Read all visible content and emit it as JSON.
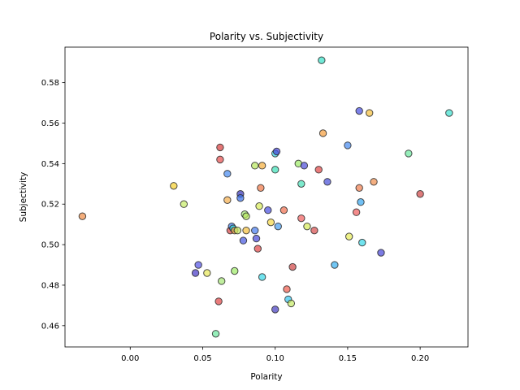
{
  "chart_data": {
    "type": "scatter",
    "title": "Polarity vs. Subjectivity",
    "xlabel": "Polarity",
    "ylabel": "Subjectivity",
    "xlim": [
      -0.045,
      0.233
    ],
    "ylim": [
      0.4495,
      0.5975
    ],
    "xticks": [
      0.0,
      0.05,
      0.1,
      0.15,
      0.2
    ],
    "xtick_labels": [
      "0.00",
      "0.05",
      "0.10",
      "0.15",
      "0.20"
    ],
    "yticks": [
      0.46,
      0.48,
      0.5,
      0.52,
      0.54,
      0.56,
      0.58
    ],
    "ytick_labels": [
      "0.46",
      "0.48",
      "0.50",
      "0.52",
      "0.54",
      "0.56",
      "0.58"
    ],
    "grid": false,
    "legend": "none",
    "points": [
      {
        "x": -0.033,
        "y": 0.514,
        "color": "#f08f4a"
      },
      {
        "x": 0.03,
        "y": 0.529,
        "color": "#f5d030"
      },
      {
        "x": 0.037,
        "y": 0.52,
        "color": "#c8ec6a"
      },
      {
        "x": 0.045,
        "y": 0.486,
        "color": "#4a3cc8"
      },
      {
        "x": 0.047,
        "y": 0.49,
        "color": "#5656e6"
      },
      {
        "x": 0.053,
        "y": 0.486,
        "color": "#e8e85a"
      },
      {
        "x": 0.059,
        "y": 0.456,
        "color": "#6ee8a0"
      },
      {
        "x": 0.061,
        "y": 0.472,
        "color": "#e04848"
      },
      {
        "x": 0.062,
        "y": 0.548,
        "color": "#d84040"
      },
      {
        "x": 0.062,
        "y": 0.542,
        "color": "#e85050"
      },
      {
        "x": 0.063,
        "y": 0.482,
        "color": "#a8e878"
      },
      {
        "x": 0.067,
        "y": 0.535,
        "color": "#4a8cf0"
      },
      {
        "x": 0.067,
        "y": 0.522,
        "color": "#f5b050"
      },
      {
        "x": 0.069,
        "y": 0.507,
        "color": "#d84848"
      },
      {
        "x": 0.07,
        "y": 0.509,
        "color": "#3a78e8"
      },
      {
        "x": 0.071,
        "y": 0.508,
        "color": "#3ae0d8"
      },
      {
        "x": 0.072,
        "y": 0.507,
        "color": "#f5a040"
      },
      {
        "x": 0.072,
        "y": 0.487,
        "color": "#a0ec6a"
      },
      {
        "x": 0.074,
        "y": 0.507,
        "color": "#c8ec6a"
      },
      {
        "x": 0.076,
        "y": 0.525,
        "color": "#3a38b8"
      },
      {
        "x": 0.076,
        "y": 0.523,
        "color": "#3a70e8"
      },
      {
        "x": 0.078,
        "y": 0.502,
        "color": "#4a5ae0"
      },
      {
        "x": 0.079,
        "y": 0.515,
        "color": "#a8ec78"
      },
      {
        "x": 0.08,
        "y": 0.514,
        "color": "#b8e860"
      },
      {
        "x": 0.08,
        "y": 0.507,
        "color": "#f5c040"
      },
      {
        "x": 0.086,
        "y": 0.539,
        "color": "#b8e860"
      },
      {
        "x": 0.086,
        "y": 0.507,
        "color": "#4a7ef0"
      },
      {
        "x": 0.087,
        "y": 0.503,
        "color": "#4a4ad8"
      },
      {
        "x": 0.088,
        "y": 0.498,
        "color": "#e04848"
      },
      {
        "x": 0.089,
        "y": 0.519,
        "color": "#d8ec5a"
      },
      {
        "x": 0.09,
        "y": 0.528,
        "color": "#f07848"
      },
      {
        "x": 0.091,
        "y": 0.539,
        "color": "#f5b040"
      },
      {
        "x": 0.091,
        "y": 0.484,
        "color": "#3ad8e8"
      },
      {
        "x": 0.095,
        "y": 0.517,
        "color": "#4a50e0"
      },
      {
        "x": 0.097,
        "y": 0.511,
        "color": "#f5d848"
      },
      {
        "x": 0.1,
        "y": 0.537,
        "color": "#40e0b8"
      },
      {
        "x": 0.1,
        "y": 0.545,
        "color": "#3ad8e8"
      },
      {
        "x": 0.101,
        "y": 0.546,
        "color": "#4a48d8"
      },
      {
        "x": 0.1,
        "y": 0.468,
        "color": "#4840c0"
      },
      {
        "x": 0.102,
        "y": 0.509,
        "color": "#4aa0f0"
      },
      {
        "x": 0.106,
        "y": 0.517,
        "color": "#f07050"
      },
      {
        "x": 0.108,
        "y": 0.478,
        "color": "#f06050"
      },
      {
        "x": 0.109,
        "y": 0.473,
        "color": "#3ac8f0"
      },
      {
        "x": 0.111,
        "y": 0.471,
        "color": "#c8ec6a"
      },
      {
        "x": 0.112,
        "y": 0.489,
        "color": "#d04848"
      },
      {
        "x": 0.116,
        "y": 0.54,
        "color": "#a0ec6a"
      },
      {
        "x": 0.118,
        "y": 0.513,
        "color": "#f06060"
      },
      {
        "x": 0.118,
        "y": 0.53,
        "color": "#4ae0b8"
      },
      {
        "x": 0.12,
        "y": 0.539,
        "color": "#5050d8"
      },
      {
        "x": 0.122,
        "y": 0.509,
        "color": "#d8ec5a"
      },
      {
        "x": 0.127,
        "y": 0.507,
        "color": "#d85050"
      },
      {
        "x": 0.13,
        "y": 0.537,
        "color": "#e04848"
      },
      {
        "x": 0.132,
        "y": 0.591,
        "color": "#3ae0c8"
      },
      {
        "x": 0.133,
        "y": 0.555,
        "color": "#f5a040"
      },
      {
        "x": 0.136,
        "y": 0.531,
        "color": "#4a50d8"
      },
      {
        "x": 0.141,
        "y": 0.49,
        "color": "#3ab0f0"
      },
      {
        "x": 0.15,
        "y": 0.549,
        "color": "#4a8cf0"
      },
      {
        "x": 0.151,
        "y": 0.504,
        "color": "#e8ec5a"
      },
      {
        "x": 0.156,
        "y": 0.516,
        "color": "#f06060"
      },
      {
        "x": 0.158,
        "y": 0.566,
        "color": "#4a50e0"
      },
      {
        "x": 0.158,
        "y": 0.528,
        "color": "#f08050"
      },
      {
        "x": 0.159,
        "y": 0.521,
        "color": "#3aa8f0"
      },
      {
        "x": 0.16,
        "y": 0.501,
        "color": "#3ad8e8"
      },
      {
        "x": 0.165,
        "y": 0.565,
        "color": "#f5c040"
      },
      {
        "x": 0.168,
        "y": 0.531,
        "color": "#f09050"
      },
      {
        "x": 0.173,
        "y": 0.496,
        "color": "#4a48d8"
      },
      {
        "x": 0.192,
        "y": 0.545,
        "color": "#6ee8a0"
      },
      {
        "x": 0.2,
        "y": 0.525,
        "color": "#d04848"
      },
      {
        "x": 0.22,
        "y": 0.565,
        "color": "#40e0d0"
      }
    ]
  }
}
